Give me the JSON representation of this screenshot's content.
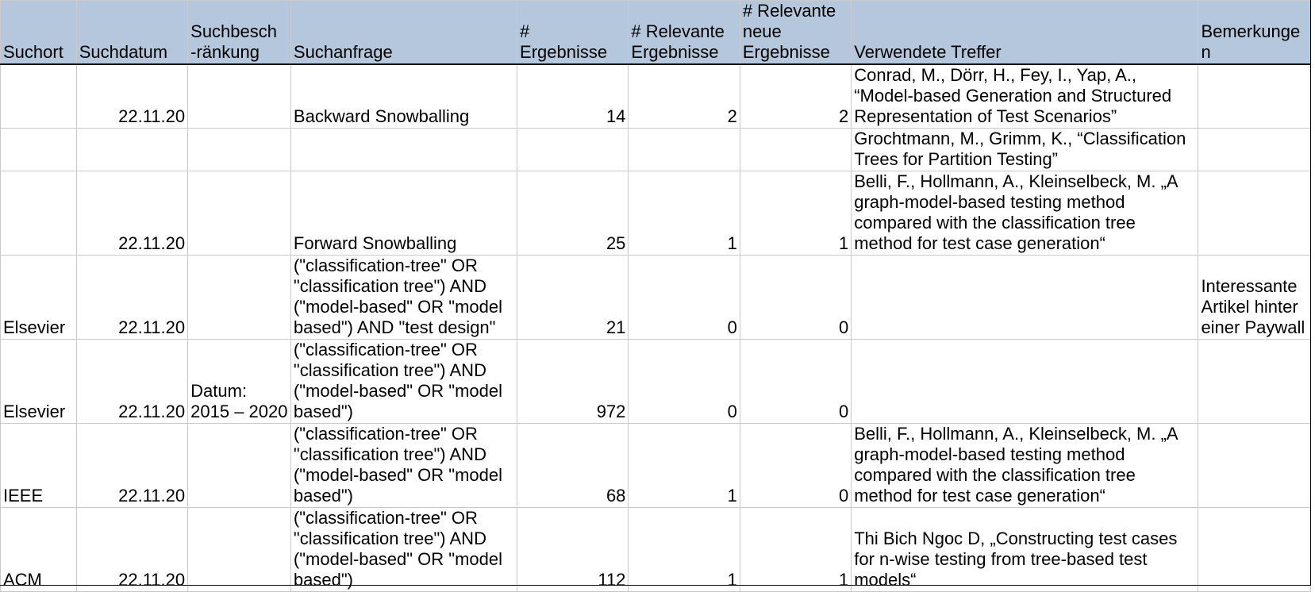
{
  "columns": [
    "Suchort",
    "Suchdatum",
    "Suchbesch\n-ränkung",
    "Suchanfrage",
    "#\nErgebnisse",
    "# Relevante\nErgebnisse",
    "# Relevante\nneue\nErgebnisse",
    "Verwendete Treffer",
    "Bemerkungen"
  ],
  "rows": [
    {
      "suchort": "",
      "suchdatum": "22.11.20",
      "suchbeschraenkung": "",
      "suchanfrage": "Backward Snowballing",
      "ergebnisse": "14",
      "relevante": "2",
      "relevante_neue": "2",
      "treffer": "Conrad, M., Dörr, H., Fey, I., Yap, A., “Model-based Generation and Structured Representation of Test Scenarios”",
      "bemerkungen": ""
    },
    {
      "suchort": "",
      "suchdatum": "",
      "suchbeschraenkung": "",
      "suchanfrage": "",
      "ergebnisse": "",
      "relevante": "",
      "relevante_neue": "",
      "treffer": "Grochtmann, M., Grimm, K., “Classification Trees for Partition Testing”",
      "bemerkungen": ""
    },
    {
      "suchort": "",
      "suchdatum": "22.11.20",
      "suchbeschraenkung": "",
      "suchanfrage": "Forward Snowballing",
      "ergebnisse": "25",
      "relevante": "1",
      "relevante_neue": "1",
      "treffer": "Belli, F., Hollmann, A., Kleinselbeck, M. „A graph-model-based testing method compared with the classification tree method for test case generation“",
      "bemerkungen": ""
    },
    {
      "suchort": "Elsevier",
      "suchdatum": "22.11.20",
      "suchbeschraenkung": "",
      "suchanfrage": "(\"classification-tree\" OR \"classification tree\") AND (\"model-based\" OR \"model based\") AND \"test design\"",
      "ergebnisse": "21",
      "relevante": "0",
      "relevante_neue": "0",
      "treffer": "",
      "bemerkungen": "Interessante Artikel hinter einer Paywall"
    },
    {
      "suchort": "Elsevier",
      "suchdatum": "22.11.20",
      "suchbeschraenkung": "Datum: 2015 – 2020",
      "suchanfrage": "(\"classification-tree\" OR \"classification tree\") AND (\"model-based\" OR \"model based\")",
      "ergebnisse": "972",
      "relevante": "0",
      "relevante_neue": "0",
      "treffer": "",
      "bemerkungen": ""
    },
    {
      "suchort": "IEEE",
      "suchdatum": "22.11.20",
      "suchbeschraenkung": "",
      "suchanfrage": "(\"classification-tree\" OR \"classification tree\") AND (\"model-based\" OR \"model based\")",
      "ergebnisse": "68",
      "relevante": "1",
      "relevante_neue": "0",
      "treffer": "Belli, F., Hollmann, A., Kleinselbeck, M. „A graph-model-based testing method compared with the classification tree method for test case generation“",
      "bemerkungen": ""
    },
    {
      "suchort": "ACM",
      "suchdatum": "22.11.20",
      "suchbeschraenkung": "",
      "suchanfrage": "(\"classification-tree\" OR \"classification tree\") AND (\"model-based\" OR \"model based\")",
      "ergebnisse": "112",
      "relevante": "1",
      "relevante_neue": "1",
      "treffer": "Thi Bich Ngoc D, „Constructing test cases for n-wise testing from tree-based test models“",
      "bemerkungen": ""
    }
  ],
  "colors": {
    "header_background": "#b4c7dc",
    "grid_line": "#c9c9c9"
  }
}
